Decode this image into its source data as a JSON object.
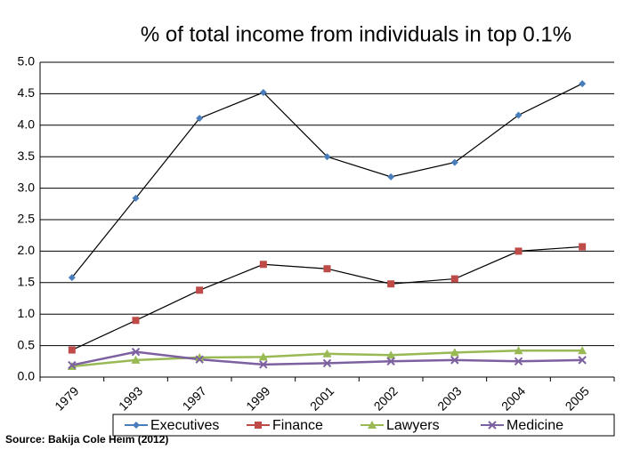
{
  "chart_data": {
    "type": "line",
    "title": "% of total income from individuals in top 0.1%",
    "source": "Source: Bakija Cole Heim (2012)",
    "categories": [
      "1979",
      "1993",
      "1997",
      "1999",
      "2001",
      "2002",
      "2003",
      "2004",
      "2005"
    ],
    "series": [
      {
        "name": "Executives",
        "color": "#4a7ebb",
        "line_color": "#000000",
        "marker": "diamond",
        "values": [
          1.58,
          2.84,
          4.11,
          4.52,
          3.5,
          3.18,
          3.41,
          4.16,
          4.66
        ]
      },
      {
        "name": "Finance",
        "color": "#be4b48",
        "line_color": "#000000",
        "marker": "square",
        "values": [
          0.43,
          0.9,
          1.38,
          1.79,
          1.72,
          1.48,
          1.56,
          2.0,
          2.07
        ]
      },
      {
        "name": "Lawyers",
        "color": "#98b954",
        "line_color": "#98b954",
        "marker": "triangle",
        "values": [
          0.17,
          0.27,
          0.31,
          0.32,
          0.37,
          0.35,
          0.39,
          0.42,
          0.42
        ]
      },
      {
        "name": "Medicine",
        "color": "#7d60a0",
        "line_color": "#7d60a0",
        "marker": "x",
        "values": [
          0.19,
          0.4,
          0.28,
          0.2,
          0.22,
          0.25,
          0.27,
          0.25,
          0.27
        ]
      }
    ],
    "ylim": [
      0,
      5
    ],
    "yticks": [
      {
        "value": 0,
        "label": "0.0"
      },
      0.5,
      {
        "value": 1,
        "label": "1.0"
      },
      1.5,
      {
        "value": 2,
        "label": "2.0"
      },
      2.5,
      {
        "value": 3,
        "label": "3.0"
      },
      3.5,
      {
        "value": 4,
        "label": "4.0"
      },
      4.5,
      {
        "value": 5,
        "label": "5.0"
      }
    ],
    "grid": true,
    "legend": "bottom"
  }
}
